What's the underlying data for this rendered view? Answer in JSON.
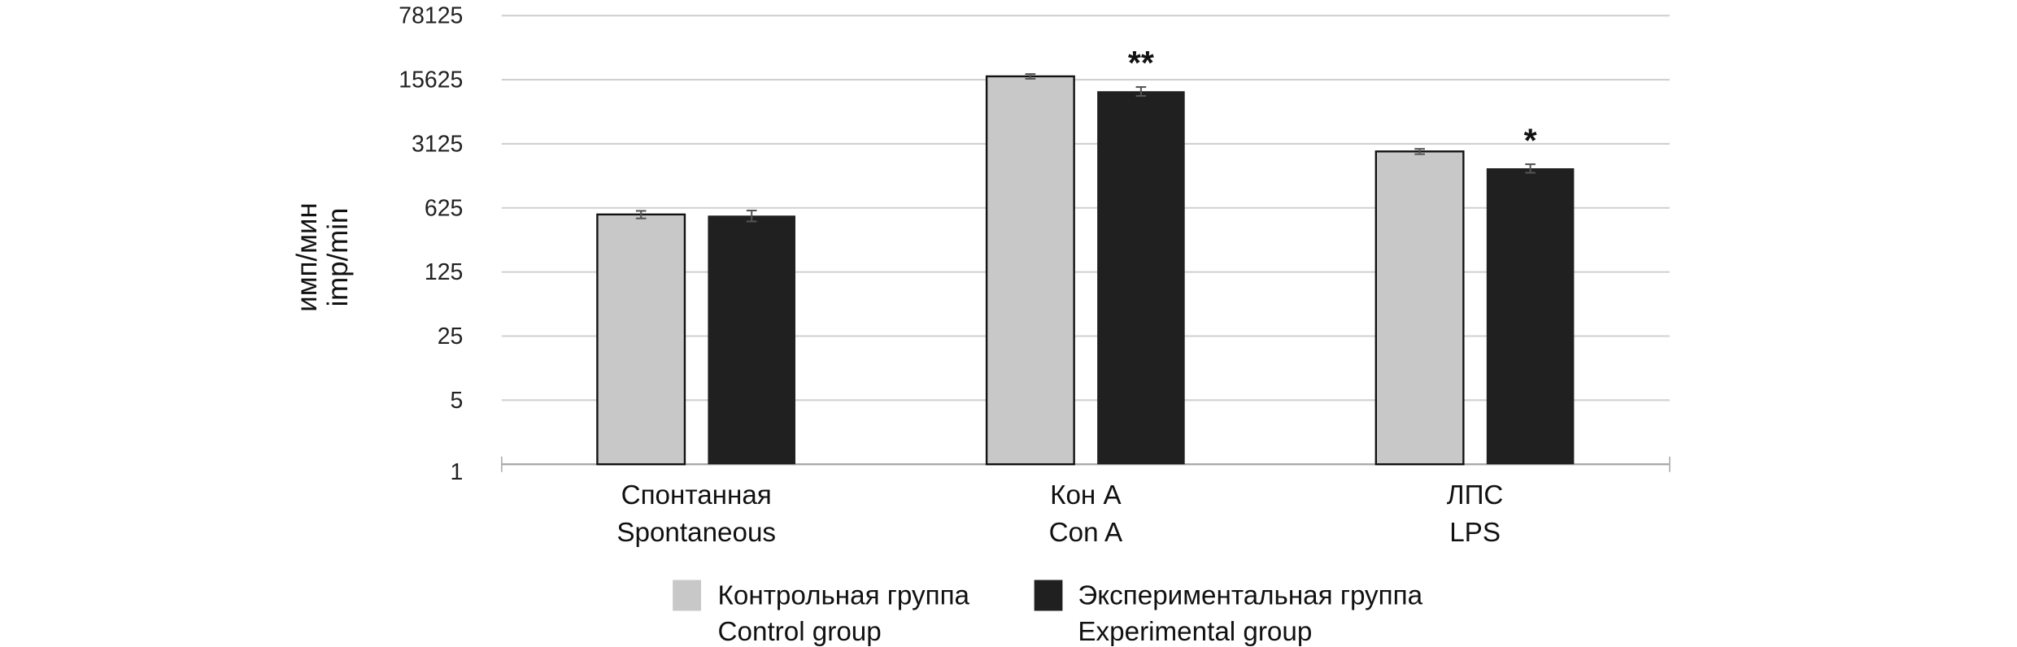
{
  "chart_data": {
    "type": "bar",
    "title": "",
    "ylabel": [
      "имп/мин",
      "imp/min"
    ],
    "xlabel": "",
    "yscale": "log5",
    "ylim": [
      1,
      78125
    ],
    "yticks": [
      "1",
      "5",
      "25",
      "125",
      "625",
      "3125",
      "15625",
      "78125"
    ],
    "ytick_values": [
      1,
      5,
      25,
      125,
      625,
      3125,
      15625,
      78125
    ],
    "grid": true,
    "categories": [
      {
        "ru": "Спонтанная",
        "en": "Spontaneous"
      },
      {
        "ru": "Кон А",
        "en": "Con A"
      },
      {
        "ru": "ЛПС",
        "en": "LPS"
      }
    ],
    "series": [
      {
        "name_ru": "Контрольная группа",
        "name_en": "Control group",
        "color": "#c8c8c8",
        "values": [
          530,
          17000,
          2580
        ],
        "errors": [
          50,
          1000,
          170
        ]
      },
      {
        "name_ru": "Экспериментальная группа",
        "name_en": "Experimental group",
        "color": "#202020",
        "values": [
          515,
          11700,
          1690
        ],
        "errors": [
          70,
          1300,
          180
        ]
      }
    ],
    "annotations": [
      "",
      "**",
      "*"
    ],
    "legend": "bottom"
  }
}
